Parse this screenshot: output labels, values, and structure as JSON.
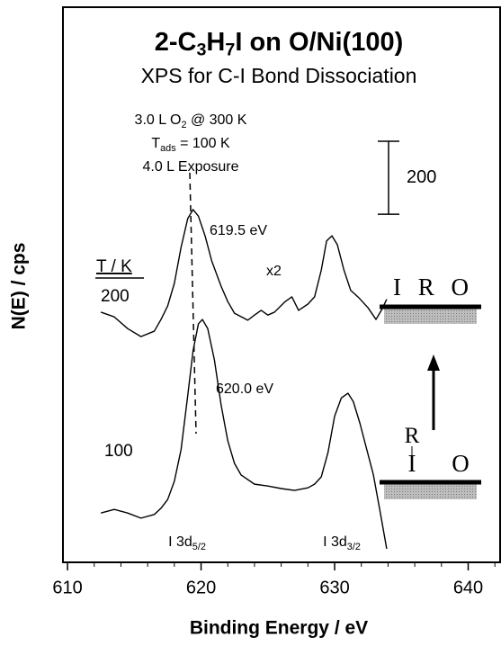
{
  "chart_data": {
    "type": "line",
    "title": [
      "2-C",
      "3",
      "H",
      "7",
      "I on O/Ni(100)"
    ],
    "subtitle": "XPS for C-I Bond Dissociation",
    "xlabel": "Binding Energy / eV",
    "ylabel": "N(E) / cps",
    "xlim": [
      609.66,
      642.39
    ],
    "xticks": [
      610,
      620,
      630,
      640
    ],
    "xminorticks": [
      612,
      614,
      616,
      618,
      622,
      624,
      626,
      628,
      632,
      634,
      636,
      638,
      642
    ],
    "ylim": [
      0,
      1520
    ],
    "legend_title": "T / K",
    "scale_bar": 200,
    "series": [
      {
        "name": "200",
        "color": "#000000",
        "x": [
          612.5,
          613.5,
          614.5,
          615.5,
          616.5,
          617.0,
          617.5,
          618.0,
          618.5,
          619.0,
          619.4,
          619.8,
          620.3,
          620.8,
          621.5,
          622.0,
          622.5,
          623.5,
          624.0,
          624.5,
          625.0,
          625.5,
          626.3,
          626.8,
          627.3,
          628.0,
          628.5,
          629.0,
          629.4,
          629.8,
          630.2,
          630.7,
          631.2,
          631.8,
          632.5,
          633.1,
          633.5,
          633.9
        ],
        "values": [
          685,
          672,
          640,
          618,
          633,
          665,
          702,
          764,
          862,
          941,
          966,
          948,
          894,
          825,
          756,
          714,
          682,
          663,
          677,
          690,
          677,
          685,
          714,
          727,
          690,
          707,
          727,
          800,
          880,
          894,
          870,
          800,
          745,
          725,
          697,
          665,
          690,
          720
        ]
      },
      {
        "name": "100",
        "color": "#000000",
        "x": [
          612.5,
          613.5,
          614.5,
          615.5,
          616.5,
          617.0,
          617.5,
          618.0,
          618.5,
          619.0,
          619.4,
          619.8,
          620.1,
          620.5,
          621.0,
          621.5,
          622.0,
          622.5,
          623.0,
          624.0,
          625.0,
          626.0,
          627.0,
          628.0,
          628.5,
          629.0,
          629.5,
          630.0,
          630.5,
          631.0,
          631.4,
          631.9,
          632.4,
          632.9,
          633.4,
          633.9
        ],
        "values": [
          135,
          145,
          135,
          121,
          131,
          148,
          172,
          222,
          308,
          456,
          579,
          653,
          665,
          640,
          554,
          431,
          333,
          271,
          239,
          214,
          209,
          202,
          197,
          204,
          214,
          234,
          300,
          400,
          450,
          463,
          440,
          380,
          310,
          240,
          140,
          37
        ]
      }
    ],
    "annotations": [
      [
        "3.0 L O",
        "2",
        " @ 300 K"
      ],
      [
        "T",
        "ads",
        " = 100 K"
      ],
      [
        "4.0 L Exposure"
      ],
      [
        "619.5 eV"
      ],
      [
        "620.0 eV"
      ],
      [
        "x2"
      ],
      [
        "I 3d",
        "5/2"
      ],
      [
        "I 3d",
        "3/2"
      ],
      [
        "I R O"
      ],
      [
        "R"
      ],
      [
        "I"
      ],
      [
        "O"
      ]
    ]
  }
}
